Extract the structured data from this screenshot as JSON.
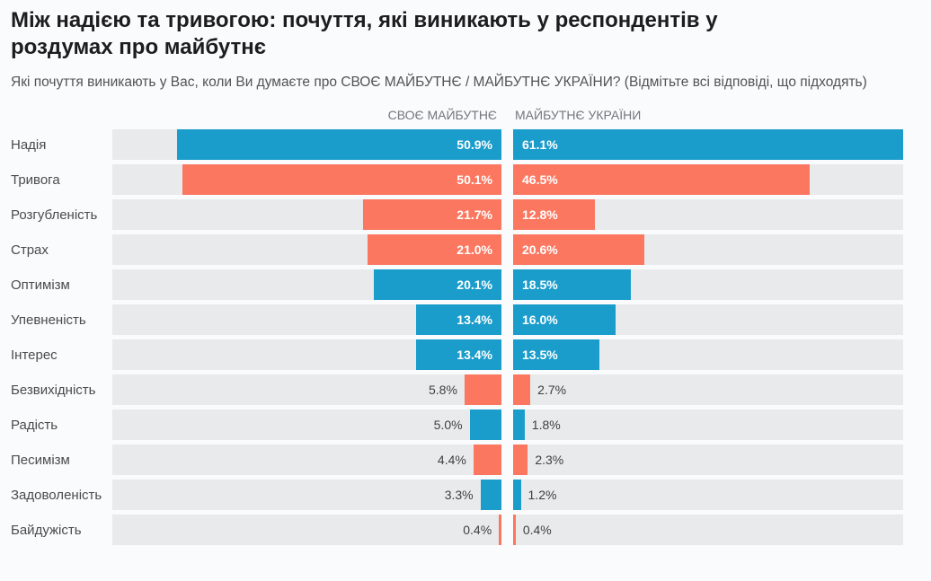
{
  "header": {
    "title": "Між надією та тривогою: почуття, які виникають у респондентів у роздумах про майбутнє",
    "subtitle": "Які почуття виникають у Вас, коли Ви думаєте про СВОЄ МАЙБУТНЄ / МАЙБУТНЄ УКРАЇНИ? (Відмітьте всі відповіді, що підходять)"
  },
  "chart_data": {
    "type": "bar",
    "layout": "paired-horizontal-mirrored",
    "title": "Між надією та тривогою: почуття, які виникають у респондентів у роздумах про майбутнє",
    "column_headers": [
      "СВОЄ МАЙБУТНЄ",
      "МАЙБУТНЄ УКРАЇНИ"
    ],
    "unit": "%",
    "xmax": 61.1,
    "grid": false,
    "legend": "none",
    "categories": [
      "Надія",
      "Тривога",
      "Розгубленість",
      "Страх",
      "Оптимізм",
      "Упевненість",
      "Інтерес",
      "Безвихідність",
      "Радість",
      "Песимізм",
      "Задоволеність",
      "Байдужість"
    ],
    "series": [
      {
        "name": "СВОЄ МАЙБУТНЄ",
        "values": [
          50.9,
          50.1,
          21.7,
          21.0,
          20.1,
          13.4,
          13.4,
          5.8,
          5.0,
          4.4,
          3.3,
          0.4
        ]
      },
      {
        "name": "МАЙБУТНЄ УКРАЇНИ",
        "values": [
          61.1,
          46.5,
          12.8,
          20.6,
          18.5,
          16.0,
          13.5,
          2.7,
          1.8,
          2.3,
          1.2,
          0.4
        ]
      }
    ],
    "row_sentiment": [
      "positive",
      "negative",
      "negative",
      "negative",
      "positive",
      "positive",
      "positive",
      "negative",
      "positive",
      "negative",
      "positive",
      "negative"
    ],
    "palette": {
      "positive": "#1B9DCC",
      "negative": "#FB7760",
      "track": "#E9EAEB",
      "value_label_inside": "#FFFFFF",
      "value_label_outside": "#3E3F41"
    }
  }
}
